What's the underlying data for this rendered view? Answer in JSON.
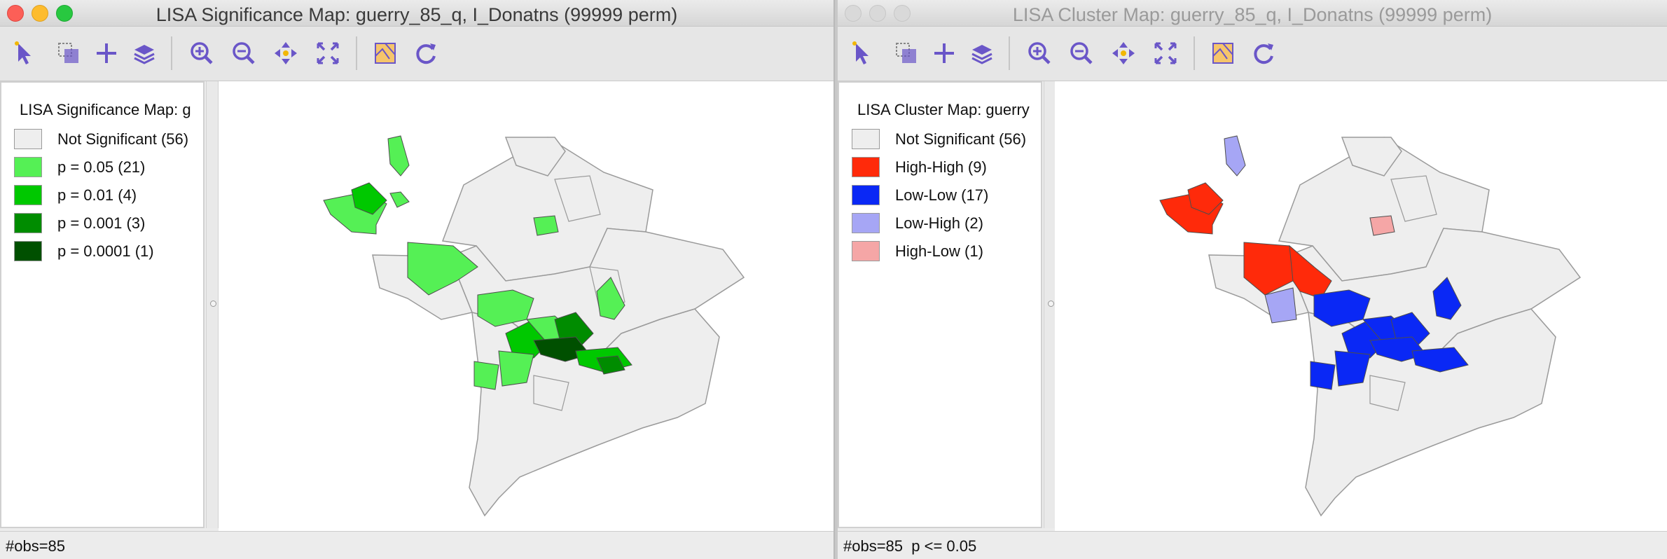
{
  "left_window": {
    "title": "LISA Significance Map: guerry_85_q, I_Donatns (99999 perm)",
    "legend_title": "LISA Significance Map: g",
    "legend": [
      {
        "label": "Not Significant (56)",
        "color": "#eeeeee"
      },
      {
        "label": "p = 0.05 (21)",
        "color": "#55f055"
      },
      {
        "label": "p = 0.01 (4)",
        "color": "#00c800"
      },
      {
        "label": "p = 0.001 (3)",
        "color": "#008c00"
      },
      {
        "label": "p = 0.0001 (1)",
        "color": "#005000"
      }
    ],
    "status": "#obs=85"
  },
  "right_window": {
    "title": "LISA Cluster Map: guerry_85_q, I_Donatns (99999 perm)",
    "legend_title": "LISA Cluster Map: guerry",
    "legend": [
      {
        "label": "Not Significant (56)",
        "color": "#eeeeee"
      },
      {
        "label": "High-High (9)",
        "color": "#ff2a0a"
      },
      {
        "label": "Low-Low (17)",
        "color": "#0a28f5"
      },
      {
        "label": "Low-High (2)",
        "color": "#a6a6f5"
      },
      {
        "label": "High-Low (1)",
        "color": "#f5a6a6"
      }
    ],
    "status": "#obs=85  p <= 0.05"
  },
  "toolbar_icons": [
    "select-arrow-icon",
    "select-by-rectangle-icon",
    "add-crosshair-icon",
    "layers-icon",
    "zoom-in-icon",
    "zoom-out-icon",
    "pan-icon",
    "fit-extent-icon",
    "basemap-icon",
    "refresh-icon"
  ],
  "colors": {
    "map_outline": "#9a9a9a",
    "not_significant": "#eeeeee",
    "window_bg": "#ececec",
    "icon_purple": "#6a56c8"
  }
}
